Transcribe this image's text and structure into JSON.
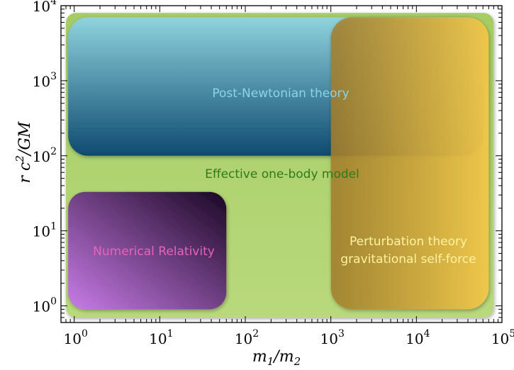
{
  "axes": {
    "x": {
      "scale": "log",
      "range": [
        0.7,
        100000
      ],
      "ticks": [
        1,
        10,
        100,
        1000,
        10000,
        100000
      ],
      "tick_labels": [
        {
          "base": "10",
          "exp": "0"
        },
        {
          "base": "10",
          "exp": "1"
        },
        {
          "base": "10",
          "exp": "2"
        },
        {
          "base": "10",
          "exp": "3"
        },
        {
          "base": "10",
          "exp": "4"
        },
        {
          "base": "10",
          "exp": "5"
        }
      ],
      "label": {
        "v1": "m",
        "s1": "1",
        "mid": "/m",
        "s2": "2"
      }
    },
    "y": {
      "scale": "log",
      "range": [
        0.6,
        10000
      ],
      "ticks": [
        1,
        10,
        100,
        1000,
        10000
      ],
      "tick_labels": [
        {
          "base": "10",
          "exp": "0"
        },
        {
          "base": "10",
          "exp": "1"
        },
        {
          "base": "10",
          "exp": "2"
        },
        {
          "base": "10",
          "exp": "3"
        },
        {
          "base": "10",
          "exp": "4"
        }
      ],
      "label": {
        "pre": "r c",
        "sup": "2",
        "post": "/GM"
      }
    }
  },
  "regions": [
    {
      "id": "eob",
      "label": "Effective one-body model",
      "label_color": "#2f7a1c",
      "x_range": [
        0.8,
        80000
      ],
      "y_range": [
        0.7,
        8000
      ],
      "colors": [
        "#a6cc63",
        "#b9d97c"
      ]
    },
    {
      "id": "pn",
      "label": "Post-Newtonian theory",
      "label_color": "#8ad3ea",
      "x_range": [
        0.85,
        60000
      ],
      "y_range": [
        100,
        7000
      ],
      "colors": [
        "#8ed3dd",
        "#0f4a70"
      ]
    },
    {
      "id": "nr",
      "label": "Numerical Relativity",
      "label_color": "#e763b9",
      "x_range": [
        0.85,
        60
      ],
      "y_range": [
        0.9,
        33
      ],
      "colors": [
        "#c97ce8",
        "#1a0724"
      ]
    },
    {
      "id": "pt",
      "label_lines": [
        "Perturbation theory",
        "gravitational self-force"
      ],
      "label_color": "#fff2a0",
      "x_range": [
        1000,
        70000
      ],
      "y_range": [
        0.9,
        7000
      ],
      "colors": [
        "#a37f2c",
        "#f2c849"
      ]
    }
  ]
}
